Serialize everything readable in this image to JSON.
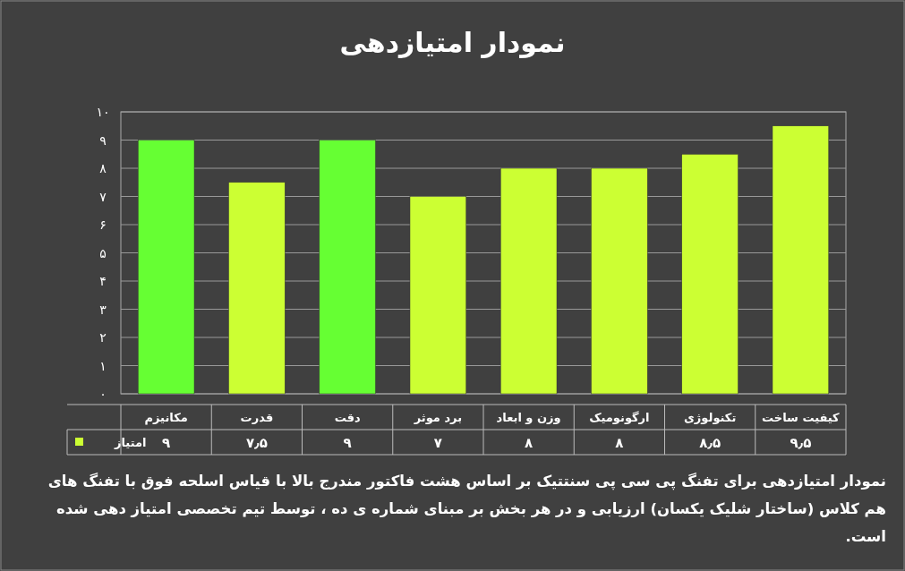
{
  "chart_data": {
    "type": "bar",
    "title": "نمودار امتیازدهی",
    "categories": [
      "مکانیزم",
      "قدرت",
      "دقت",
      "برد موثر",
      "وزن و ابعاد",
      "ارگونومیک",
      "تکنولوژی",
      "کیفیت ساخت"
    ],
    "series": [
      {
        "name": "امتیاز",
        "color": "#ccff33",
        "values": [
          9,
          7.5,
          9,
          7,
          8,
          8,
          8.5,
          9.5
        ],
        "colors": [
          "#66ff33",
          "#ccff33",
          "#66ff33",
          "#ccff33",
          "#ccff33",
          "#ccff33",
          "#ccff33",
          "#ccff33"
        ],
        "value_labels": [
          "۹",
          "۷٫۵",
          "۹",
          "۷",
          "۸",
          "۸",
          "۸٫۵",
          "۹٫۵"
        ]
      }
    ],
    "ylim": [
      0,
      10
    ],
    "yticks": [
      {
        "value": 0,
        "label": "۰"
      },
      {
        "value": 1,
        "label": "۱"
      },
      {
        "value": 2,
        "label": "۲"
      },
      {
        "value": 3,
        "label": "۳"
      },
      {
        "value": 4,
        "label": "۴"
      },
      {
        "value": 5,
        "label": "۵"
      },
      {
        "value": 6,
        "label": "۶"
      },
      {
        "value": 7,
        "label": "۷"
      },
      {
        "value": 8,
        "label": "۸"
      },
      {
        "value": 9,
        "label": "۹"
      },
      {
        "value": 10,
        "label": "۱۰"
      }
    ],
    "grid": "y",
    "legend": "bottom",
    "annotations": [
      "نمودار امتیازدهی برای تفنگ پی سی پی سنتتیک بر اساس هشت فاکتور مندرج بالا با قیاس اسلحه فوق با تفنگ های هم کلاس (ساختار شلیک یکسان) ارزیابی و در هر بخش بر مبنای شماره ی ده ، توسط تیم تخصصی امتیاز دهی شده است."
    ]
  }
}
